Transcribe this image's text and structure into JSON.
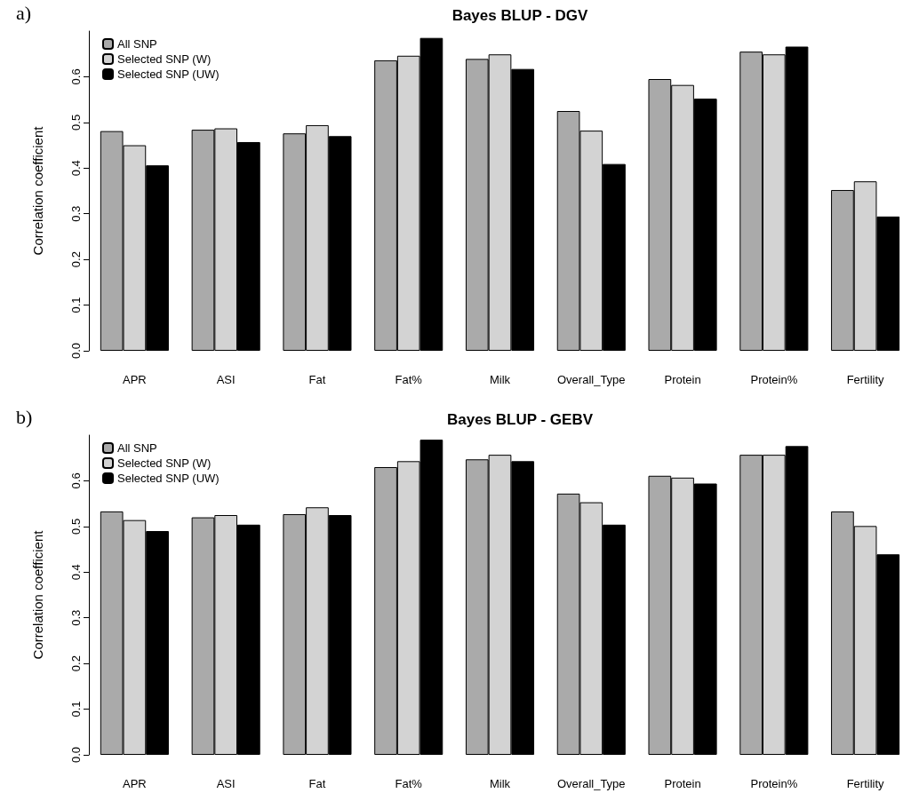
{
  "chart_data": [
    {
      "type": "bar",
      "title": "Bayes BLUP - DGV",
      "ylabel": "Correlation coefficient",
      "annotations": [
        "a)"
      ],
      "categories": [
        "APR",
        "ASI",
        "Fat",
        "Fat%",
        "Milk",
        "Overall_Type",
        "Protein",
        "Protein%",
        "Fertility"
      ],
      "series": [
        {
          "name": "All SNP",
          "color": "#aaaaaa",
          "values": [
            0.481,
            0.484,
            0.476,
            0.636,
            0.639,
            0.525,
            0.595,
            0.655,
            0.352
          ]
        },
        {
          "name": "Selected SNP (W)",
          "color": "#d3d3d3",
          "values": [
            0.45,
            0.487,
            0.494,
            0.646,
            0.649,
            0.482,
            0.582,
            0.649,
            0.371
          ]
        },
        {
          "name": "Selected SNP (UW)",
          "color": "#000000",
          "values": [
            0.406,
            0.457,
            0.47,
            0.685,
            0.617,
            0.409,
            0.552,
            0.666,
            0.294
          ]
        }
      ],
      "ylim": [
        0,
        0.7
      ],
      "yticks": [
        {
          "value": 0,
          "label": "0.0"
        },
        0.1,
        0.2,
        0.3,
        0.4,
        0.5,
        0.6
      ],
      "grid": false,
      "legend": "top left"
    },
    {
      "type": "bar",
      "title": "Bayes BLUP - GEBV",
      "ylabel": "Correlation coefficient",
      "annotations": [
        "b)"
      ],
      "categories": [
        "APR",
        "ASI",
        "Fat",
        "Fat%",
        "Milk",
        "Overall_Type",
        "Protein",
        "Protein%",
        "Fertility"
      ],
      "series": [
        {
          "name": "All SNP",
          "color": "#aaaaaa",
          "values": [
            0.533,
            0.52,
            0.527,
            0.63,
            0.647,
            0.572,
            0.611,
            0.657,
            0.533
          ]
        },
        {
          "name": "Selected SNP (W)",
          "color": "#d3d3d3",
          "values": [
            0.514,
            0.525,
            0.542,
            0.643,
            0.657,
            0.553,
            0.607,
            0.657,
            0.501
          ]
        },
        {
          "name": "Selected SNP (UW)",
          "color": "#000000",
          "values": [
            0.49,
            0.504,
            0.525,
            0.69,
            0.643,
            0.504,
            0.594,
            0.676,
            0.439
          ]
        }
      ],
      "ylim": [
        0,
        0.7
      ],
      "yticks": [
        {
          "value": 0,
          "label": "0.0"
        },
        0.1,
        0.2,
        0.3,
        0.4,
        0.5,
        0.6
      ],
      "grid": false,
      "legend": "top left"
    }
  ]
}
